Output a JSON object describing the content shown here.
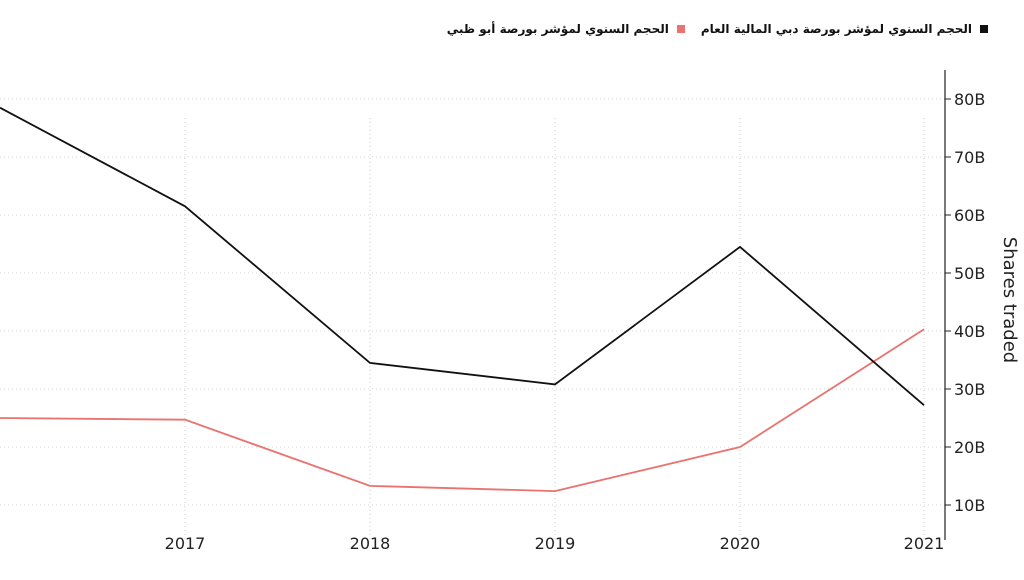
{
  "chart_data": {
    "type": "line",
    "x": [
      "2016",
      "2017",
      "2018",
      "2019",
      "2020",
      "2021"
    ],
    "x_tick_labels": [
      "2017",
      "2018",
      "2019",
      "2020",
      "2021"
    ],
    "series": [
      {
        "name": "الحجم السنوي لمؤشر بورصة دبي المالية العام",
        "color": "#111111",
        "values": [
          78.5,
          61.5,
          34.5,
          30.8,
          54.5,
          27.2
        ]
      },
      {
        "name": "الحجم السنوي لمؤشر بورصة أبو ظبي",
        "color": "#e8736f",
        "values": [
          25.0,
          24.7,
          13.3,
          12.4,
          20.0,
          40.3
        ]
      }
    ],
    "ylabel": "Shares traded",
    "y_ticks": [
      10,
      20,
      30,
      40,
      50,
      60,
      70,
      80
    ],
    "y_tick_labels": [
      "10B",
      "20B",
      "30B",
      "40B",
      "50B",
      "60B",
      "70B",
      "80B"
    ],
    "ylim": [
      5,
      85
    ],
    "y_axis_position": "right",
    "legend_position": "top-right",
    "grid": "dotted"
  }
}
